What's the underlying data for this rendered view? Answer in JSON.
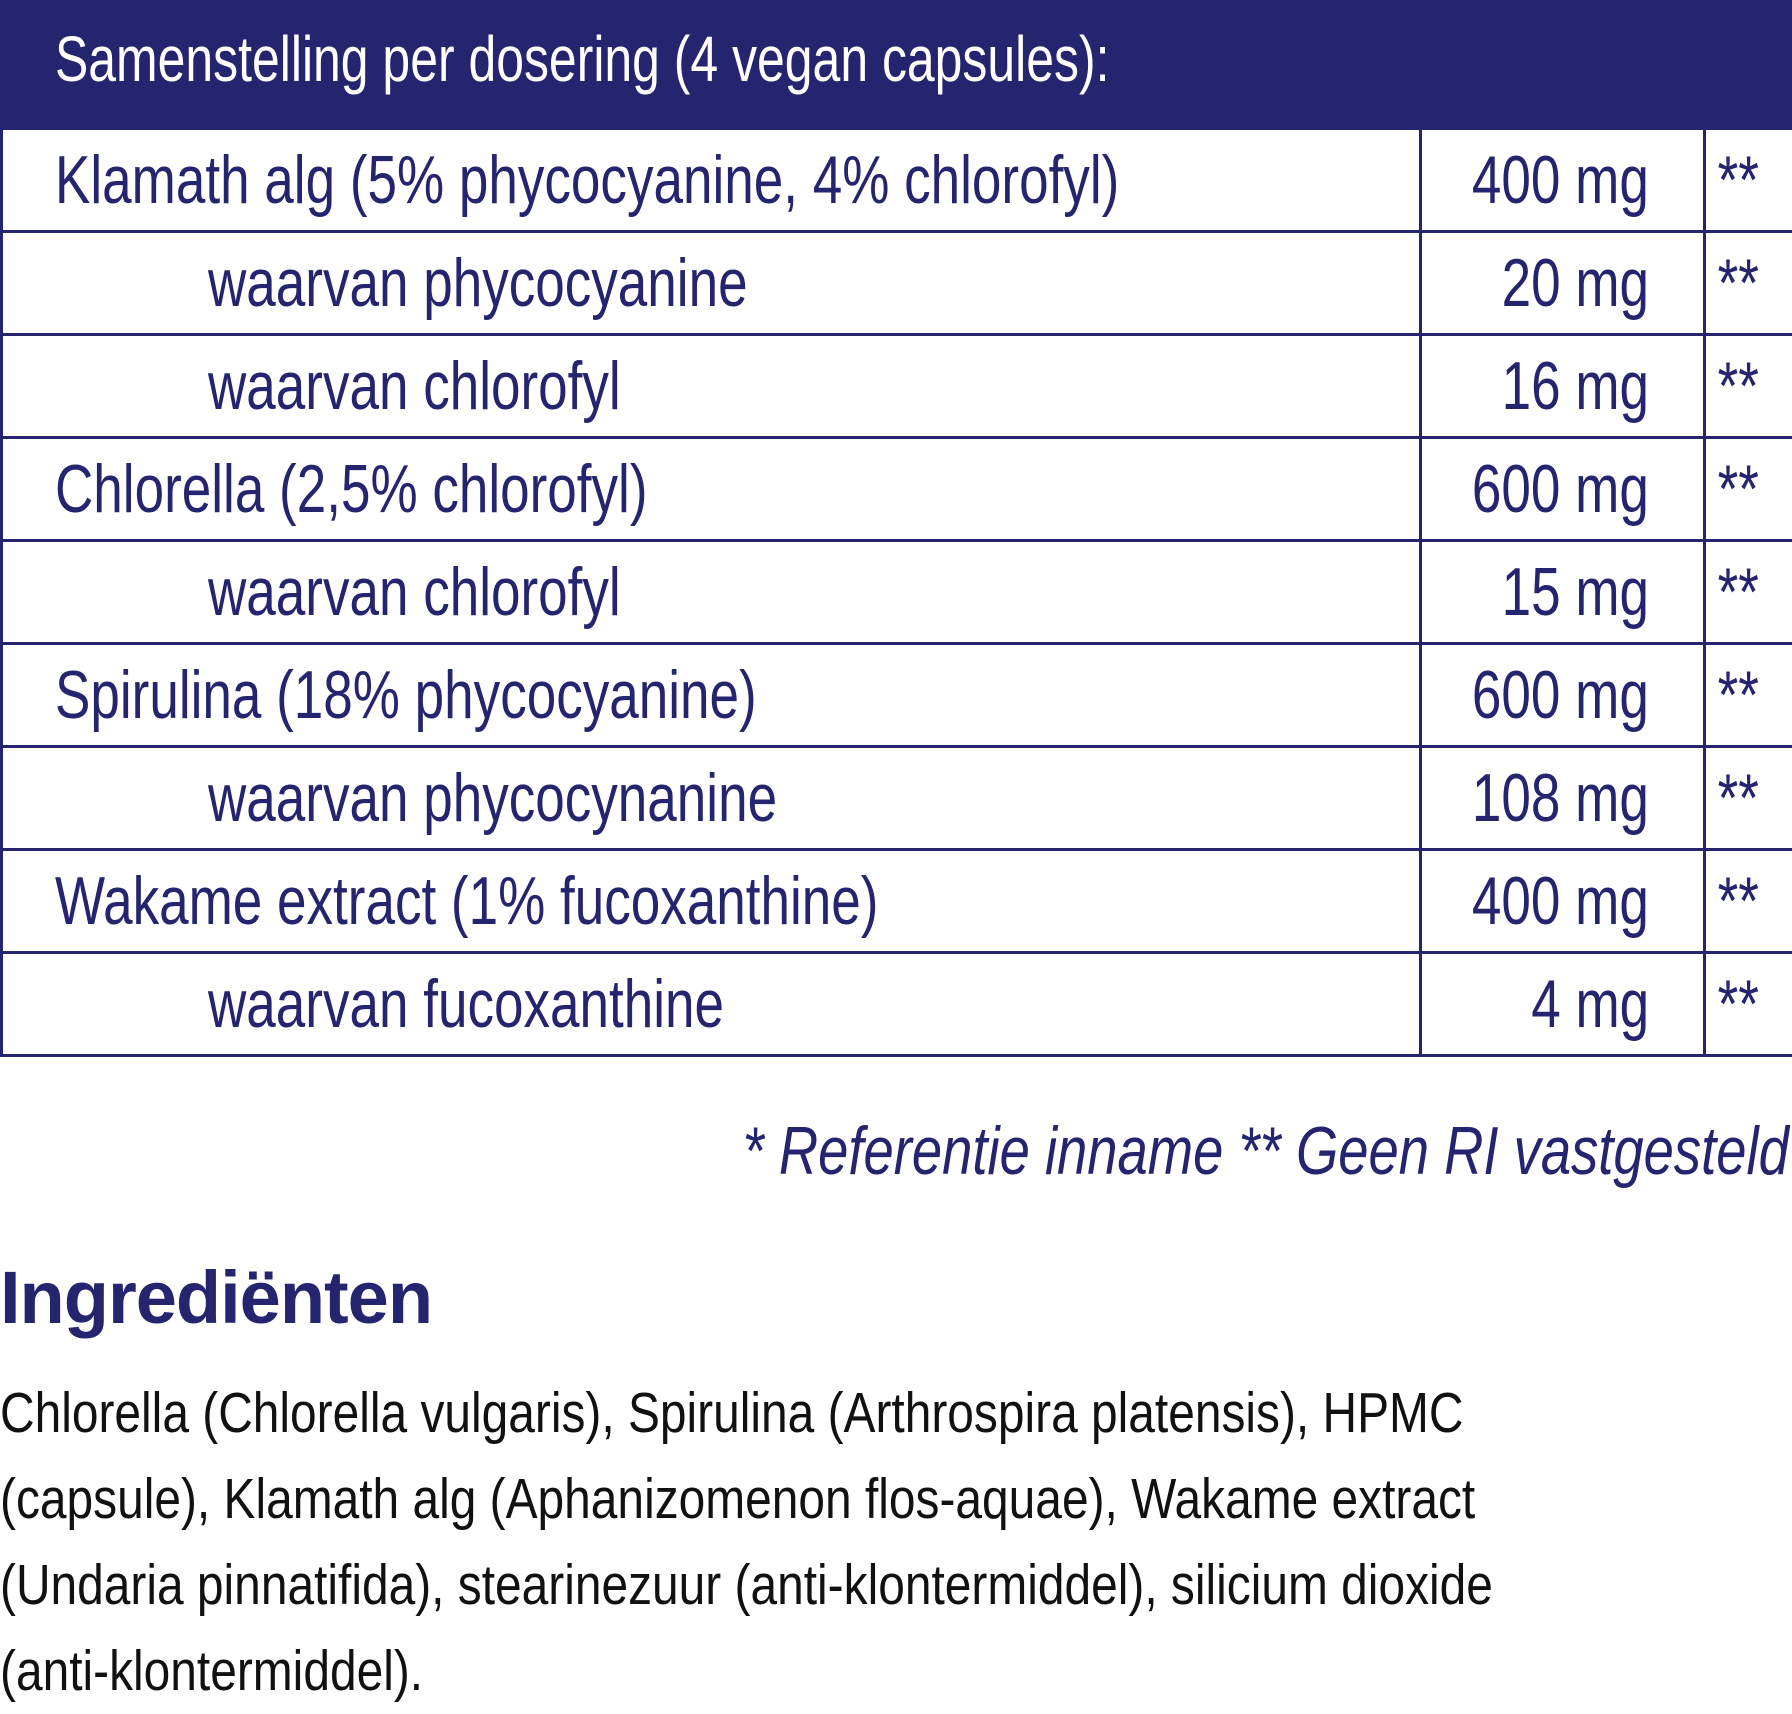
{
  "header": {
    "title": "Samenstelling per dosering (4 vegan capsules):"
  },
  "rows": [
    {
      "name": "Klamath alg (5% phycocyanine, 4% chlorofyl)",
      "amount": "400 mg",
      "ri": "**",
      "sub": false
    },
    {
      "name": "waarvan phycocyanine",
      "amount": "20 mg",
      "ri": "**",
      "sub": true
    },
    {
      "name": "waarvan chlorofyl",
      "amount": "16 mg",
      "ri": "**",
      "sub": true
    },
    {
      "name": "Chlorella (2,5% chlorofyl)",
      "amount": "600 mg",
      "ri": "**",
      "sub": false
    },
    {
      "name": "waarvan chlorofyl",
      "amount": "15 mg",
      "ri": "**",
      "sub": true
    },
    {
      "name": "Spirulina (18% phycocyanine)",
      "amount": "600 mg",
      "ri": "**",
      "sub": false
    },
    {
      "name": "waarvan phycocynanine",
      "amount": "108 mg",
      "ri": "**",
      "sub": true
    },
    {
      "name": "Wakame extract (1% fucoxanthine)",
      "amount": "400 mg",
      "ri": "**",
      "sub": false
    },
    {
      "name": "waarvan fucoxanthine",
      "amount": "4 mg",
      "ri": "**",
      "sub": true
    }
  ],
  "footnote": "* Referentie inname  ** Geen RI vastgesteld",
  "ingredients": {
    "title": "Ingrediënten",
    "lines": [
      "Chlorella (Chlorella vulgaris), Spirulina (Arthrospira platensis), HPMC",
      "(capsule), Klamath alg (Aphanizomenon flos-aquae), Wakame extract",
      "(Undaria pinnatifida), stearinezuur (anti-klontermiddel), silicium dioxide",
      "(anti-klontermiddel)."
    ]
  },
  "colors": {
    "brand": "#24246f",
    "text": "#111111"
  }
}
